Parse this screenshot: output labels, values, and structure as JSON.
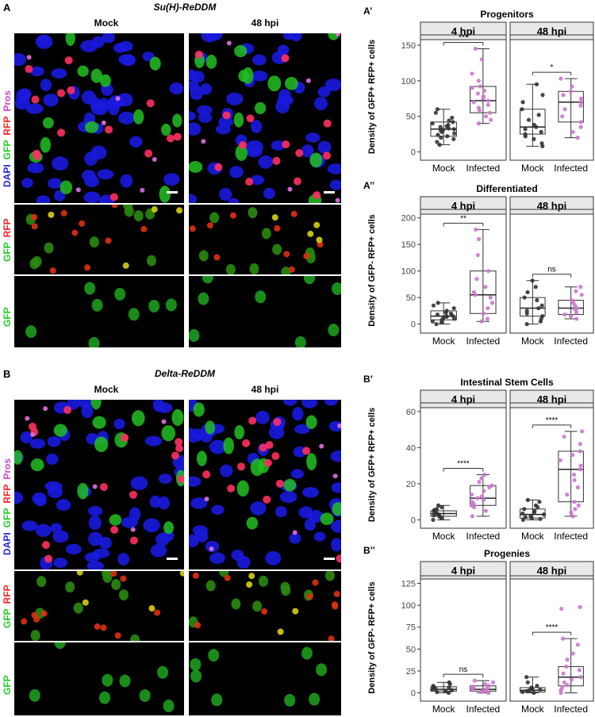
{
  "panelA": {
    "letter": "A",
    "title": "Su(H)-ReDDM",
    "col_mock": "Mock",
    "col_48": "48 hpi",
    "row1_labels": [
      "Pros",
      "RFP",
      "GFP",
      "DAPI"
    ],
    "row2_labels": [
      "RFP",
      "GFP"
    ],
    "row3_labels": [
      "GFP"
    ]
  },
  "panelB": {
    "letter": "B",
    "title": "Delta-ReDDM",
    "col_mock": "Mock",
    "col_48": "48 hpi",
    "row1_labels": [
      "Pros",
      "RFP",
      "GFP",
      "DAPI"
    ],
    "row2_labels": [
      "RFP",
      "GFP"
    ],
    "row3_labels": [
      "GFP"
    ]
  },
  "colors": {
    "mock": "#333333",
    "infected": "#cc77cc",
    "strip": "#e8e8e8"
  },
  "chart_data": [
    {
      "id": "A1",
      "type": "box",
      "letter": "A’",
      "title": "Progenitors",
      "ylabel": "Density of GFP+ RFP+ cells",
      "ylim": [
        -5,
        160
      ],
      "yticks": [
        0,
        50,
        100,
        150
      ],
      "facets": [
        {
          "label": "4 hpi",
          "sig": "***",
          "groups": [
            {
              "name": "Mock",
              "q1": 22,
              "med": 32,
              "q3": 42,
              "lo": 10,
              "hi": 60,
              "points": [
                10,
                14,
                18,
                20,
                22,
                24,
                26,
                28,
                30,
                31,
                32,
                33,
                35,
                36,
                38,
                40,
                42,
                44,
                48,
                55,
                60
              ]
            },
            {
              "name": "Infected",
              "q1": 55,
              "med": 72,
              "q3": 92,
              "lo": 40,
              "hi": 145,
              "points": [
                40,
                45,
                50,
                55,
                58,
                62,
                66,
                70,
                72,
                75,
                78,
                82,
                86,
                90,
                92,
                100,
                110,
                130,
                145
              ]
            }
          ]
        },
        {
          "label": "48 hpi",
          "sig": "*",
          "groups": [
            {
              "name": "Mock",
              "q1": 25,
              "med": 35,
              "q3": 60,
              "lo": 8,
              "hi": 95,
              "points": [
                8,
                12,
                18,
                22,
                25,
                28,
                32,
                35,
                38,
                45,
                52,
                60,
                70,
                80,
                95
              ]
            },
            {
              "name": "Infected",
              "q1": 42,
              "med": 70,
              "q3": 85,
              "lo": 20,
              "hi": 103,
              "points": [
                20,
                28,
                35,
                42,
                50,
                60,
                65,
                70,
                75,
                80,
                85,
                92,
                103
              ]
            }
          ]
        }
      ]
    },
    {
      "id": "A2",
      "type": "box",
      "letter": "A’’",
      "title": "Differentiated",
      "ylabel": "Density of GFP- RFP+ cells",
      "ylim": [
        -8,
        210
      ],
      "yticks": [
        0,
        50,
        100,
        150,
        200
      ],
      "facets": [
        {
          "label": "4 hpi",
          "sig": "**",
          "groups": [
            {
              "name": "Mock",
              "q1": 8,
              "med": 15,
              "q3": 25,
              "lo": 0,
              "hi": 40,
              "points": [
                0,
                3,
                5,
                8,
                10,
                12,
                14,
                15,
                16,
                18,
                20,
                22,
                25,
                30,
                35,
                40
              ]
            },
            {
              "name": "Infected",
              "q1": 20,
              "med": 55,
              "q3": 100,
              "lo": 5,
              "hi": 178,
              "points": [
                5,
                10,
                20,
                30,
                40,
                50,
                55,
                60,
                70,
                85,
                100,
                130,
                160,
                178
              ]
            }
          ]
        },
        {
          "label": "48 hpi",
          "sig": "ns",
          "groups": [
            {
              "name": "Mock",
              "q1": 15,
              "med": 30,
              "q3": 50,
              "lo": 0,
              "hi": 82,
              "points": [
                0,
                5,
                10,
                15,
                20,
                25,
                30,
                35,
                45,
                50,
                60,
                70,
                82
              ]
            },
            {
              "name": "Infected",
              "q1": 18,
              "med": 30,
              "q3": 45,
              "lo": 10,
              "hi": 70,
              "points": [
                10,
                15,
                18,
                22,
                28,
                30,
                35,
                40,
                45,
                55,
                62,
                70
              ]
            }
          ]
        }
      ]
    },
    {
      "id": "B1",
      "type": "box",
      "letter": "B’",
      "title": "Intestinal Stem Cells",
      "ylabel": "Density of GFP+ RFP+ cells",
      "ylim": [
        -2,
        63
      ],
      "yticks": [
        0,
        20,
        40,
        60
      ],
      "facets": [
        {
          "label": "4 hpi",
          "sig": "****",
          "groups": [
            {
              "name": "Mock",
              "q1": 2,
              "med": 3.5,
              "q3": 5,
              "lo": 0,
              "hi": 8,
              "points": [
                0,
                1,
                1.5,
                2,
                2.5,
                3,
                3.5,
                4,
                4.5,
                5,
                5.5,
                6,
                7,
                8
              ]
            },
            {
              "name": "Infected",
              "q1": 8,
              "med": 12,
              "q3": 19,
              "lo": 2,
              "hi": 25,
              "points": [
                2,
                5,
                7,
                8,
                9,
                10,
                11,
                12,
                13,
                14,
                16,
                18,
                19,
                21,
                23,
                25
              ]
            }
          ]
        },
        {
          "label": "48 hpi",
          "sig": "****",
          "groups": [
            {
              "name": "Mock",
              "q1": 1,
              "med": 3,
              "q3": 6,
              "lo": 0,
              "hi": 11,
              "points": [
                0,
                0.5,
                1,
                1.5,
                2,
                3,
                3.5,
                4,
                5,
                6,
                7,
                8,
                10,
                11
              ]
            },
            {
              "name": "Infected",
              "q1": 10,
              "med": 28,
              "q3": 38,
              "lo": 2,
              "hi": 49,
              "points": [
                2,
                4,
                6,
                8,
                10,
                14,
                18,
                22,
                25,
                28,
                30,
                33,
                36,
                38,
                42,
                46,
                49
              ]
            }
          ]
        }
      ]
    },
    {
      "id": "B2",
      "type": "box",
      "letter": "B’’",
      "title": "Progenies",
      "ylabel": "Density of GFP- RFP+ cells",
      "ylim": [
        -4,
        130
      ],
      "yticks": [
        0,
        25,
        50,
        75,
        100,
        125
      ],
      "facets": [
        {
          "label": "4 hpi",
          "sig": "ns",
          "groups": [
            {
              "name": "Mock",
              "q1": 2,
              "med": 4,
              "q3": 7,
              "lo": 0,
              "hi": 12,
              "points": [
                0,
                1,
                2,
                3,
                4,
                5,
                6,
                7,
                8,
                10,
                12
              ]
            },
            {
              "name": "Infected",
              "q1": 2,
              "med": 4,
              "q3": 8,
              "lo": 0,
              "hi": 14,
              "points": [
                0,
                1,
                2,
                3,
                4,
                5,
                6,
                7,
                8,
                10,
                12,
                14
              ]
            }
          ]
        },
        {
          "label": "48 hpi",
          "sig": "****",
          "groups": [
            {
              "name": "Mock",
              "q1": 1,
              "med": 3,
              "q3": 6,
              "lo": 0,
              "hi": 18,
              "points": [
                0,
                1,
                2,
                3,
                4,
                5,
                6,
                8,
                12,
                18
              ]
            },
            {
              "name": "Infected",
              "q1": 8,
              "med": 18,
              "q3": 30,
              "lo": 0,
              "hi": 62,
              "points": [
                0,
                3,
                6,
                9,
                12,
                15,
                18,
                22,
                26,
                30,
                38,
                45,
                55,
                62,
                96,
                98
              ]
            }
          ]
        }
      ]
    }
  ]
}
